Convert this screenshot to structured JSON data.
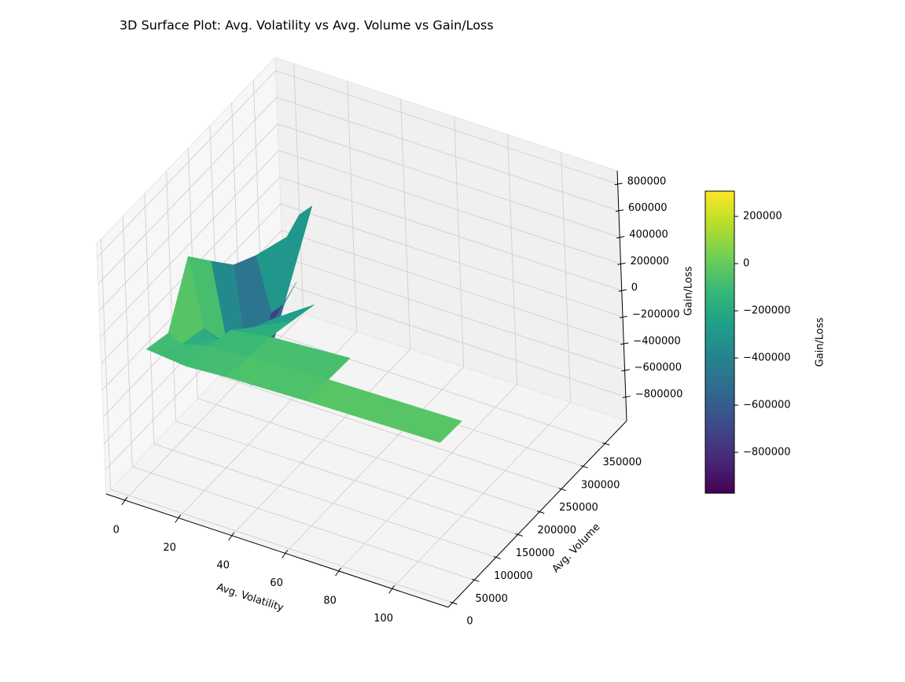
{
  "chart_data": {
    "type": "surface3d",
    "title": "3D Surface Plot: Avg. Volatility vs Avg. Volume vs Gain/Loss",
    "x_label": "Avg. Volatility",
    "y_label": "Avg. Volume",
    "z_label": "Gain/Loss",
    "colorbar_label": "Gain/Loss",
    "colormap": "viridis",
    "grid": true,
    "x": [
      0,
      5,
      10,
      15,
      30,
      60,
      110
    ],
    "y": [
      50000,
      100000,
      150000,
      200000,
      250000,
      300000,
      370000
    ],
    "z": [
      [
        -50000,
        -60000,
        -70000,
        -80000,
        -60000,
        -40000,
        -20000
      ],
      [
        -100000,
        -150000,
        -120000,
        -100000,
        -80000,
        -50000,
        -30000
      ],
      [
        305000,
        -200000,
        -250000,
        -150000,
        -100000,
        -60000,
        null
      ],
      [
        100000,
        -500000,
        -600000,
        -300000,
        -150000,
        null,
        null
      ],
      [
        -100000,
        -970000,
        -850000,
        -400000,
        -200000,
        null,
        null
      ],
      [
        -200000,
        -600000,
        -500000,
        -300000,
        null,
        null,
        null
      ],
      [
        -300000,
        -100000,
        0,
        null,
        null,
        null,
        null
      ]
    ],
    "xlim": [
      -7,
      121
    ],
    "ylim": [
      -10000,
      400000
    ],
    "zlim": [
      -980000,
      900000
    ],
    "xticks": [
      0,
      20,
      40,
      60,
      80,
      100
    ],
    "yticks": [
      0,
      50000,
      100000,
      150000,
      200000,
      250000,
      300000,
      350000
    ],
    "zticks": [
      {
        "value": -800000,
        "label": "−800000"
      },
      {
        "value": -600000,
        "label": "−600000"
      },
      {
        "value": -400000,
        "label": "−400000"
      },
      {
        "value": -200000,
        "label": "−200000"
      },
      0,
      200000,
      400000,
      600000,
      800000
    ],
    "clim": [
      -973000,
      307000
    ],
    "cticks": [
      {
        "value": -800000,
        "label": "−800000"
      },
      {
        "value": -600000,
        "label": "−600000"
      },
      {
        "value": -400000,
        "label": "−400000"
      },
      {
        "value": -200000,
        "label": "−200000"
      },
      0,
      200000
    ]
  }
}
